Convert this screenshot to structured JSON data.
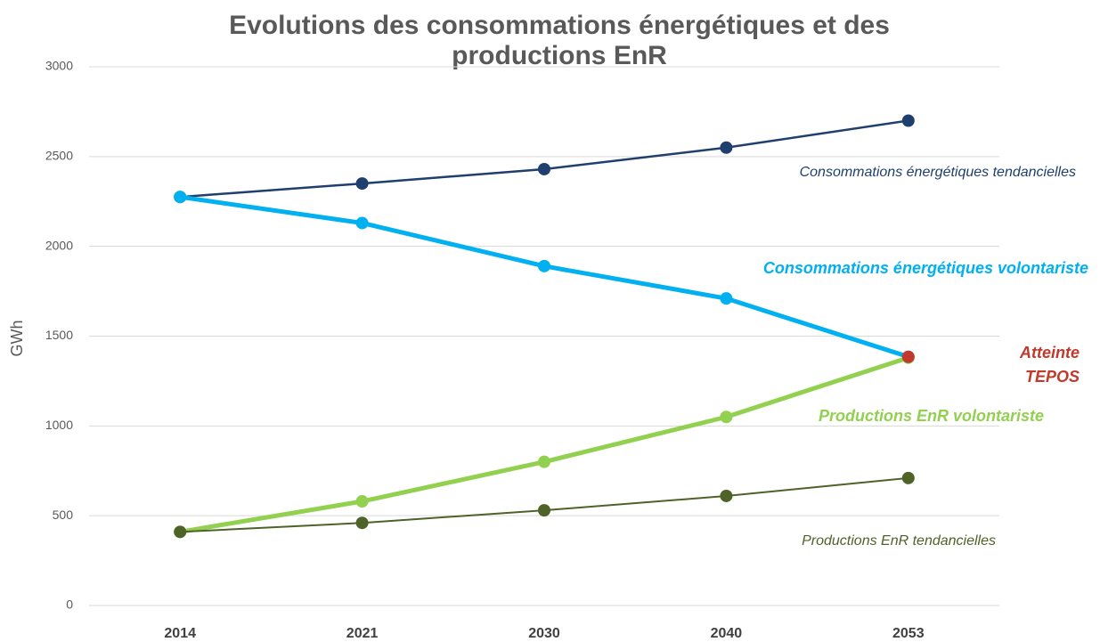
{
  "chart_data": {
    "type": "line",
    "title": [
      "Evolutions des consommations énergétiques et des",
      "productions EnR"
    ],
    "y_label": "GWh",
    "categories": [
      "2014",
      "2021",
      "2030",
      "2040",
      "2053"
    ],
    "series": [
      {
        "name": "Consommations énergétiques tendancielles",
        "color": "#1f3f6e",
        "line_width": 2.5,
        "values": [
          2275,
          2350,
          2430,
          2550,
          2700
        ]
      },
      {
        "name": "Consommations énergétiques volontariste",
        "color": "#00b0f0",
        "line_width": 5,
        "values": [
          2275,
          2130,
          1890,
          1710,
          1385
        ]
      },
      {
        "name": "Productions EnR volontariste",
        "color": "#92d050",
        "line_width": 5,
        "values": [
          410,
          580,
          800,
          1050,
          1380
        ]
      },
      {
        "name": "Productions EnR tendancielles",
        "color": "#4f6228",
        "line_width": 2,
        "values": [
          410,
          460,
          530,
          610,
          710
        ]
      }
    ],
    "annotations": [
      {
        "lines": [
          "Atteinte",
          "TEPOS"
        ],
        "category": "2053",
        "value": 1385,
        "color": "#c0392b"
      }
    ],
    "ylim": [
      0,
      3000
    ],
    "yticks": [
      0,
      500,
      1000,
      1500,
      2000,
      2500,
      3000
    ],
    "grid": true
  }
}
